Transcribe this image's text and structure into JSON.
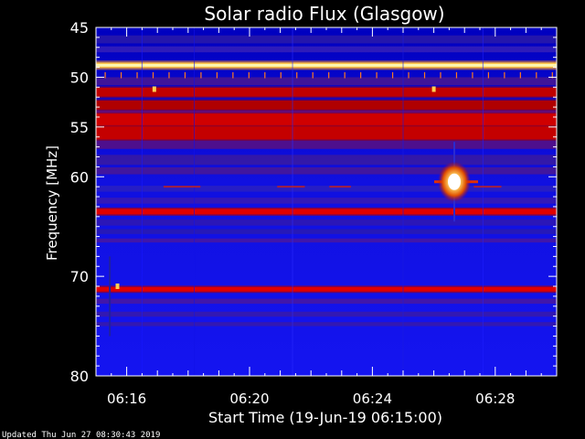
{
  "chart_data": {
    "type": "heatmap",
    "title": "Solar radio Flux (Glasgow)",
    "xlabel": "Start Time (19-Jun-19 06:15:00)",
    "ylabel": "Frequency [MHz]",
    "x_unit": "minutes",
    "x_range": [
      "06:15:00",
      "06:30:00"
    ],
    "y_range": [
      45,
      80
    ],
    "y_scale": "linear, frequency increasing downward",
    "x_ticks": [
      "06:16",
      "06:20",
      "06:24",
      "06:28"
    ],
    "y_ticks": [
      45,
      50,
      55,
      60,
      70,
      80
    ],
    "colormap": [
      "#0000c8",
      "#4a2bd0",
      "#c40000",
      "#ff7a00",
      "#fff6a0"
    ],
    "bright_bands_mhz": [
      48.8,
      51.5,
      52.8,
      54.3,
      55.6,
      63.5,
      71.3
    ],
    "burst": {
      "time": "06:26:40",
      "freq_mhz": 60.5
    }
  },
  "footer": {
    "updated": "Updated Thu Jun 27 08:30:43 2019"
  },
  "colors": {
    "background": "#000000",
    "axis": "#ffffff",
    "text": "#ffffff"
  }
}
